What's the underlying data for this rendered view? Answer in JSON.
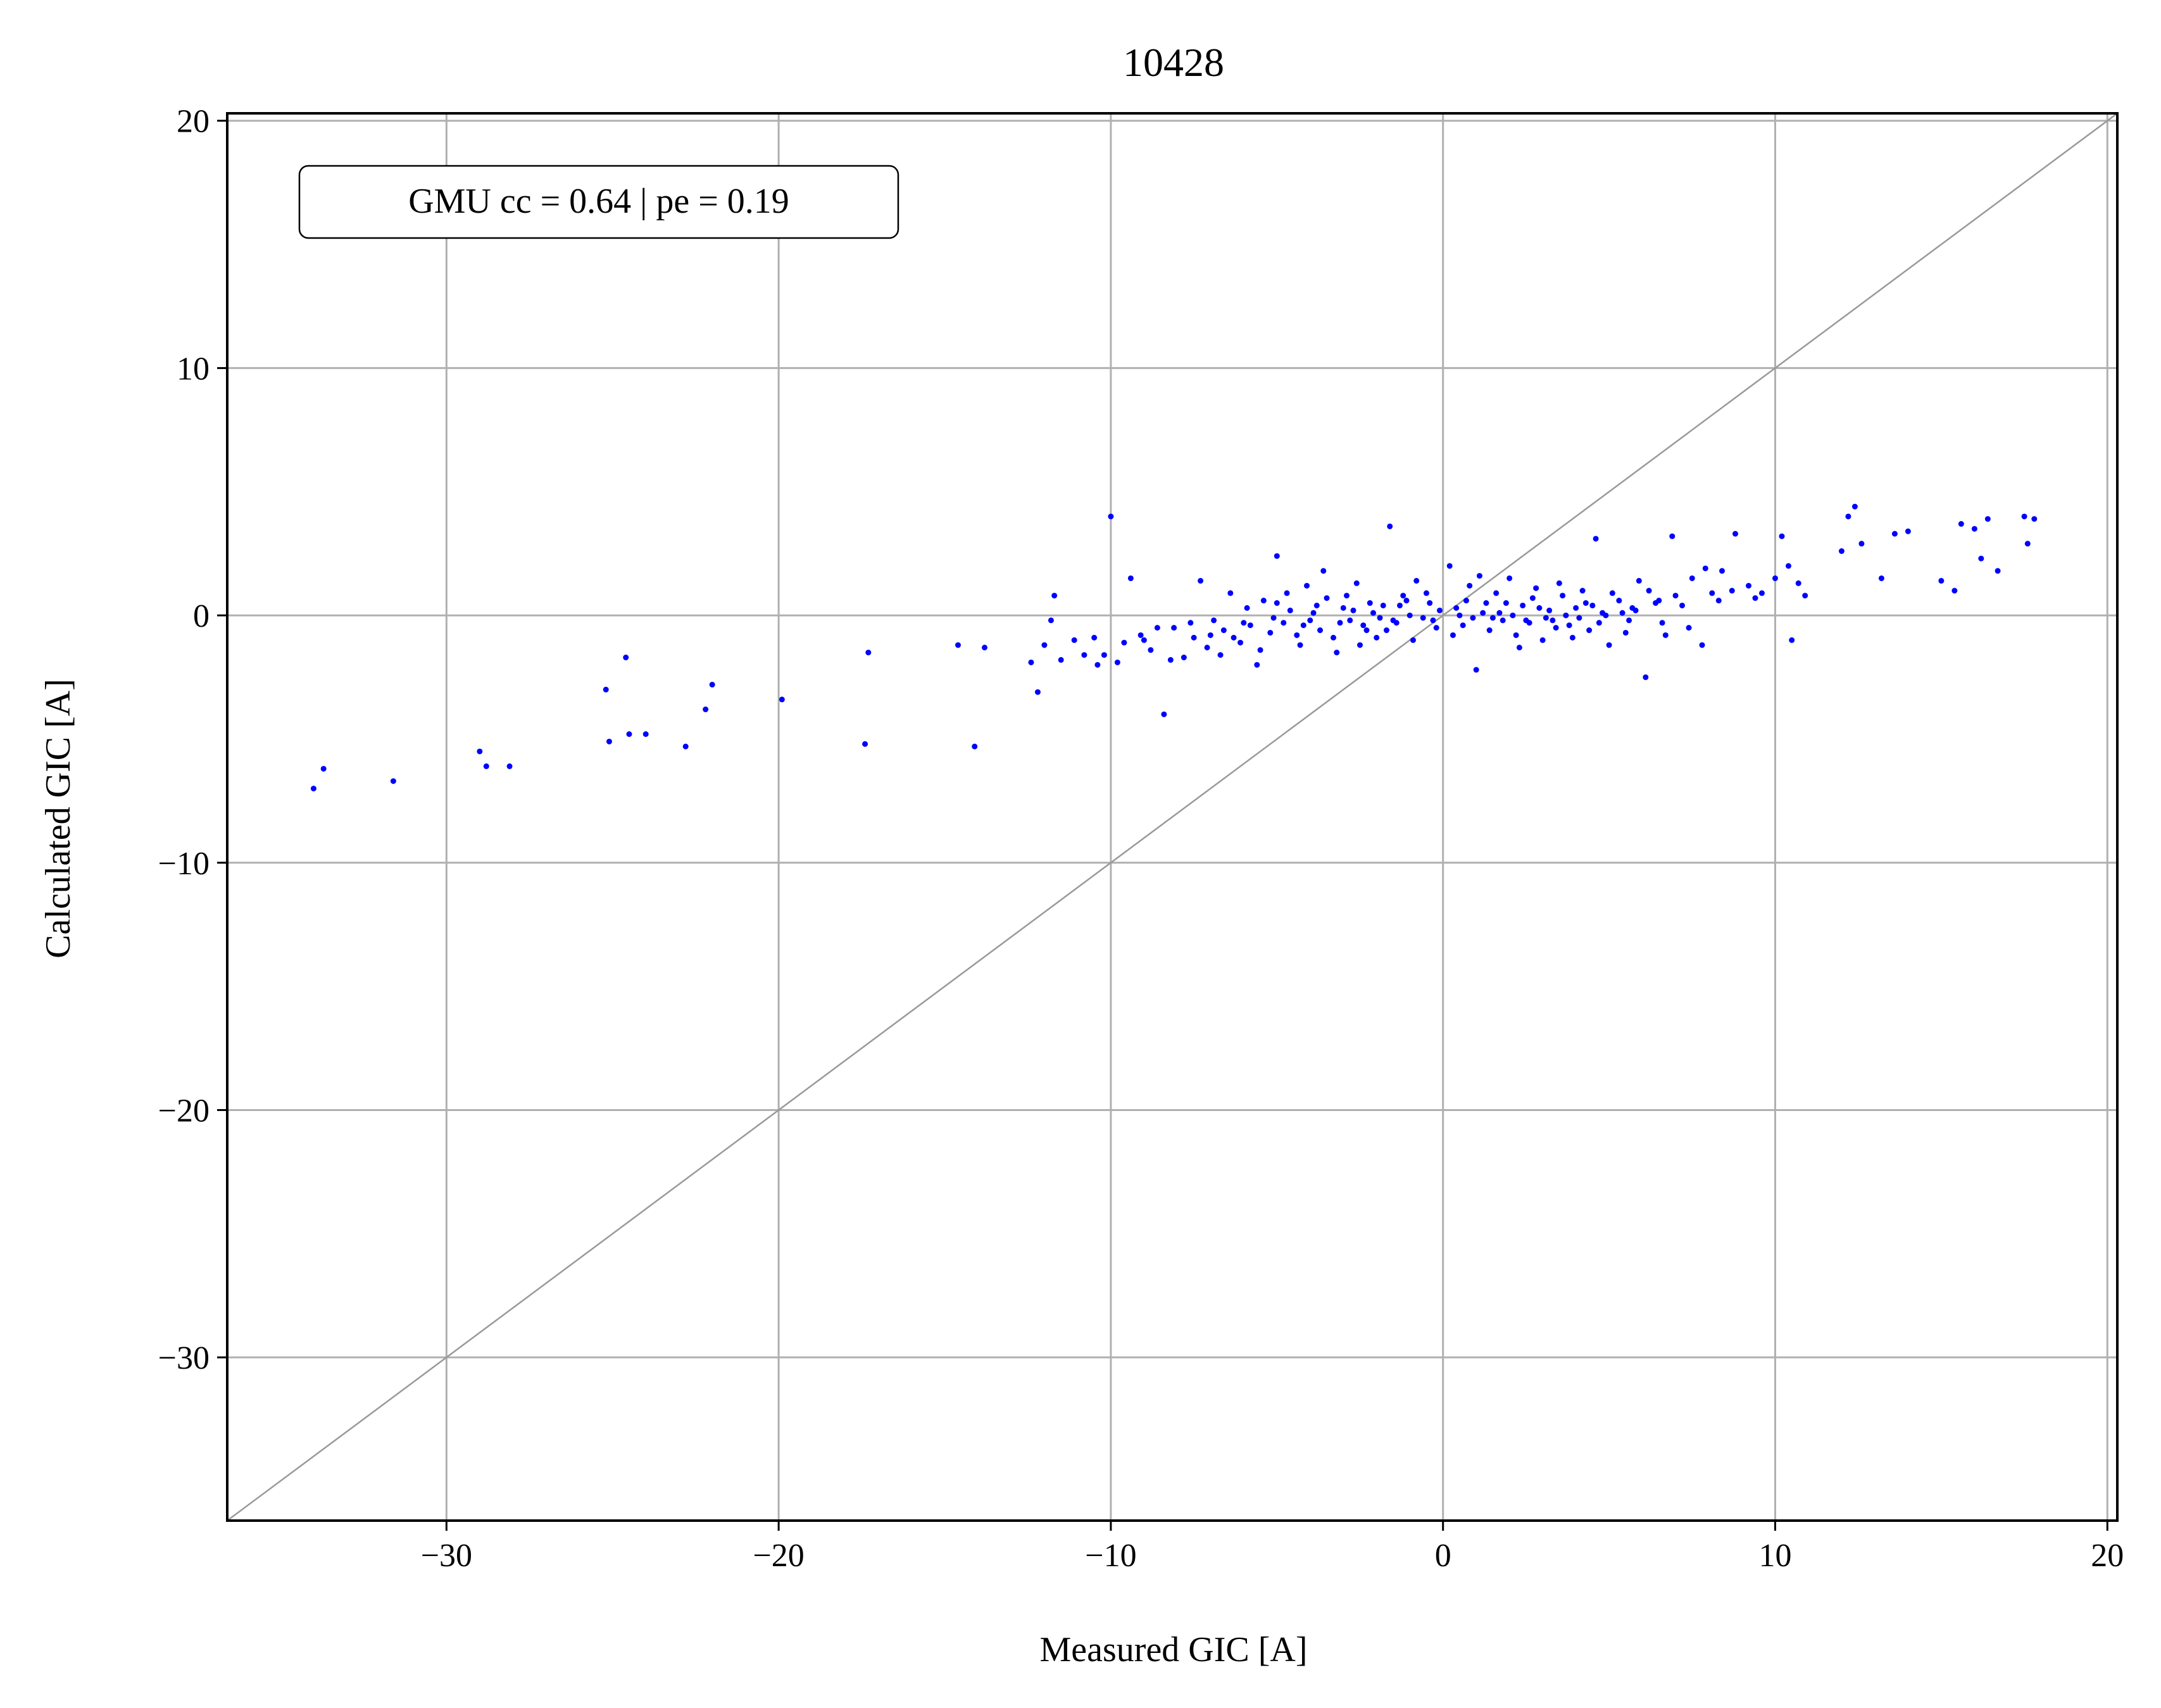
{
  "chart_data": {
    "type": "scatter",
    "title": "10428",
    "xlabel": "Measured GIC [A]",
    "ylabel": "Calculated GIC [A]",
    "xlim": [
      -36.6,
      20.3
    ],
    "ylim": [
      -36.6,
      20.3
    ],
    "xticks": [
      -30,
      -20,
      -10,
      0,
      10,
      20
    ],
    "yticks": [
      -30,
      -20,
      -10,
      0,
      10,
      20
    ],
    "xtick_labels": [
      "−30",
      "−20",
      "−10",
      "0",
      "10",
      "20"
    ],
    "ytick_labels": [
      "−30",
      "−20",
      "−10",
      "0",
      "10",
      "20"
    ],
    "grid": true,
    "reference_line": "y = x",
    "annotation": "GMU cc = 0.64 | pe = 0.19",
    "annotation_position": "top-left",
    "colors": {
      "points": "#0000ff",
      "grid": "#b0b0b0",
      "reference_line": "#999999"
    },
    "points": [
      [
        -34.0,
        -7.0
      ],
      [
        -33.7,
        -6.2
      ],
      [
        -31.6,
        -6.7
      ],
      [
        -29.0,
        -5.5
      ],
      [
        -28.8,
        -6.1
      ],
      [
        -28.1,
        -6.1
      ],
      [
        -25.2,
        -3.0
      ],
      [
        -25.1,
        -5.1
      ],
      [
        -24.6,
        -1.7
      ],
      [
        -24.5,
        -4.8
      ],
      [
        -24.0,
        -4.8
      ],
      [
        -22.8,
        -5.3
      ],
      [
        -22.2,
        -3.8
      ],
      [
        -22.0,
        -2.8
      ],
      [
        -19.9,
        -3.4
      ],
      [
        -17.4,
        -5.2
      ],
      [
        -17.3,
        -1.5
      ],
      [
        -14.6,
        -1.2
      ],
      [
        -14.1,
        -5.3
      ],
      [
        -13.8,
        -1.3
      ],
      [
        -12.4,
        -1.9
      ],
      [
        -12.2,
        -3.1
      ],
      [
        -12.0,
        -1.2
      ],
      [
        -11.8,
        -0.2
      ],
      [
        -11.7,
        0.8
      ],
      [
        -11.5,
        -1.8
      ],
      [
        -11.1,
        -1.0
      ],
      [
        -10.8,
        -1.6
      ],
      [
        -10.5,
        -0.9
      ],
      [
        -10.4,
        -2.0
      ],
      [
        -10.2,
        -1.6
      ],
      [
        -10.0,
        4.0
      ],
      [
        -9.8,
        -1.9
      ],
      [
        -9.6,
        -1.1
      ],
      [
        -9.4,
        1.5
      ],
      [
        -9.1,
        -0.8
      ],
      [
        -8.8,
        -1.4
      ],
      [
        -8.4,
        -4.0
      ],
      [
        -8.1,
        -0.5
      ],
      [
        -7.8,
        -1.7
      ],
      [
        -7.5,
        -0.9
      ],
      [
        -7.3,
        1.4
      ],
      [
        -7.1,
        -1.3
      ],
      [
        -6.9,
        -0.2
      ],
      [
        -6.6,
        -0.6
      ],
      [
        -6.4,
        0.9
      ],
      [
        -6.1,
        -1.1
      ],
      [
        -5.8,
        -0.4
      ],
      [
        -5.6,
        -2.0
      ],
      [
        -5.4,
        0.6
      ],
      [
        -5.2,
        -0.7
      ],
      [
        -5.0,
        2.4
      ],
      [
        -4.8,
        -0.3
      ],
      [
        -4.6,
        0.2
      ],
      [
        -4.3,
        -1.2
      ],
      [
        -4.1,
        1.2
      ],
      [
        -3.9,
        0.1
      ],
      [
        -3.7,
        -0.6
      ],
      [
        -3.5,
        0.7
      ],
      [
        -3.2,
        -1.5
      ],
      [
        -3.0,
        0.3
      ],
      [
        -2.8,
        -0.2
      ],
      [
        -2.6,
        1.3
      ],
      [
        -2.4,
        -0.4
      ],
      [
        -2.2,
        0.5
      ],
      [
        -2.0,
        -0.9
      ],
      [
        -1.8,
        0.4
      ],
      [
        -1.6,
        3.6
      ],
      [
        -1.4,
        -0.3
      ],
      [
        -1.2,
        0.8
      ],
      [
        -1.0,
        0.0
      ],
      [
        -0.8,
        1.4
      ],
      [
        -0.6,
        -0.1
      ],
      [
        -0.4,
        0.5
      ],
      [
        -0.2,
        -0.5
      ],
      [
        0.2,
        2.0
      ],
      [
        0.4,
        0.3
      ],
      [
        0.6,
        -0.4
      ],
      [
        0.8,
        1.2
      ],
      [
        1.0,
        -2.2
      ],
      [
        1.2,
        0.1
      ],
      [
        1.4,
        -0.6
      ],
      [
        1.6,
        0.9
      ],
      [
        1.8,
        -0.2
      ],
      [
        2.0,
        1.5
      ],
      [
        2.2,
        -0.8
      ],
      [
        2.4,
        0.4
      ],
      [
        2.6,
        -0.3
      ],
      [
        2.8,
        1.1
      ],
      [
        3.0,
        -1.0
      ],
      [
        3.2,
        0.2
      ],
      [
        3.4,
        -0.5
      ],
      [
        3.6,
        0.8
      ],
      [
        3.8,
        -0.4
      ],
      [
        4.0,
        0.3
      ],
      [
        4.2,
        1.0
      ],
      [
        4.4,
        -0.6
      ],
      [
        4.6,
        3.1
      ],
      [
        4.8,
        0.1
      ],
      [
        5.0,
        -1.2
      ],
      [
        5.3,
        0.6
      ],
      [
        5.6,
        -0.2
      ],
      [
        5.9,
        1.4
      ],
      [
        6.1,
        -2.5
      ],
      [
        6.4,
        0.5
      ],
      [
        6.7,
        -0.8
      ],
      [
        6.9,
        3.2
      ],
      [
        7.2,
        0.4
      ],
      [
        7.5,
        1.5
      ],
      [
        7.8,
        -1.2
      ],
      [
        8.1,
        0.9
      ],
      [
        8.4,
        1.8
      ],
      [
        8.8,
        3.3
      ],
      [
        9.2,
        1.2
      ],
      [
        9.6,
        0.9
      ],
      [
        10.0,
        1.5
      ],
      [
        10.2,
        3.2
      ],
      [
        10.4,
        2.0
      ],
      [
        10.5,
        -1.0
      ],
      [
        10.7,
        1.3
      ],
      [
        10.9,
        0.8
      ],
      [
        12.0,
        2.6
      ],
      [
        12.2,
        4.0
      ],
      [
        12.4,
        4.4
      ],
      [
        12.6,
        2.9
      ],
      [
        13.2,
        1.5
      ],
      [
        13.6,
        3.3
      ],
      [
        14.0,
        3.4
      ],
      [
        15.0,
        1.4
      ],
      [
        15.4,
        1.0
      ],
      [
        15.6,
        3.7
      ],
      [
        16.0,
        3.5
      ],
      [
        16.2,
        2.3
      ],
      [
        16.4,
        3.9
      ],
      [
        16.7,
        1.8
      ],
      [
        17.5,
        4.0
      ],
      [
        17.6,
        2.9
      ],
      [
        17.8,
        3.9
      ],
      [
        -9.0,
        -1.0
      ],
      [
        -8.6,
        -0.5
      ],
      [
        -8.2,
        -1.8
      ],
      [
        -7.6,
        -0.3
      ],
      [
        -7.0,
        -0.8
      ],
      [
        -6.7,
        -1.6
      ],
      [
        -6.3,
        -0.9
      ],
      [
        -5.9,
        0.3
      ],
      [
        -5.5,
        -1.4
      ],
      [
        -5.1,
        -0.1
      ],
      [
        -4.7,
        0.9
      ],
      [
        -4.4,
        -0.8
      ],
      [
        -4.0,
        -0.2
      ],
      [
        -3.6,
        1.8
      ],
      [
        -3.3,
        -0.9
      ],
      [
        -2.9,
        0.8
      ],
      [
        -2.5,
        -1.2
      ],
      [
        -2.1,
        0.1
      ],
      [
        -1.7,
        -0.6
      ],
      [
        -1.3,
        0.4
      ],
      [
        -0.9,
        -1.0
      ],
      [
        -0.5,
        0.9
      ],
      [
        -0.1,
        0.2
      ],
      [
        0.3,
        -0.8
      ],
      [
        0.7,
        0.6
      ],
      [
        1.1,
        1.6
      ],
      [
        1.5,
        -0.1
      ],
      [
        1.9,
        0.5
      ],
      [
        2.3,
        -1.3
      ],
      [
        2.7,
        0.7
      ],
      [
        3.1,
        -0.1
      ],
      [
        3.5,
        1.3
      ],
      [
        3.9,
        -0.9
      ],
      [
        4.3,
        0.5
      ],
      [
        4.7,
        -0.3
      ],
      [
        5.1,
        0.9
      ],
      [
        5.5,
        -0.7
      ],
      [
        5.8,
        0.2
      ],
      [
        6.2,
        1.0
      ],
      [
        6.6,
        -0.3
      ],
      [
        7.0,
        0.8
      ],
      [
        7.4,
        -0.5
      ],
      [
        7.9,
        1.9
      ],
      [
        8.3,
        0.6
      ],
      [
        8.7,
        1.0
      ],
      [
        9.4,
        0.7
      ],
      [
        -6.0,
        -0.3
      ],
      [
        -5.0,
        0.5
      ],
      [
        -3.8,
        0.4
      ],
      [
        -2.7,
        0.2
      ],
      [
        -1.9,
        -0.1
      ],
      [
        -1.1,
        0.6
      ],
      [
        -0.3,
        -0.2
      ],
      [
        0.5,
        0.0
      ],
      [
        1.3,
        0.5
      ],
      [
        2.1,
        0.0
      ],
      [
        2.9,
        0.3
      ],
      [
        3.7,
        0.0
      ],
      [
        4.5,
        0.4
      ],
      [
        5.4,
        0.1
      ],
      [
        -4.2,
        -0.4
      ],
      [
        -3.1,
        -0.3
      ],
      [
        -2.3,
        -0.6
      ],
      [
        -1.5,
        -0.2
      ],
      [
        0.9,
        -0.1
      ],
      [
        1.7,
        0.1
      ],
      [
        2.5,
        -0.2
      ],
      [
        3.3,
        -0.2
      ],
      [
        4.1,
        -0.1
      ],
      [
        4.9,
        0.0
      ],
      [
        5.7,
        0.3
      ],
      [
        6.5,
        0.6
      ]
    ]
  }
}
